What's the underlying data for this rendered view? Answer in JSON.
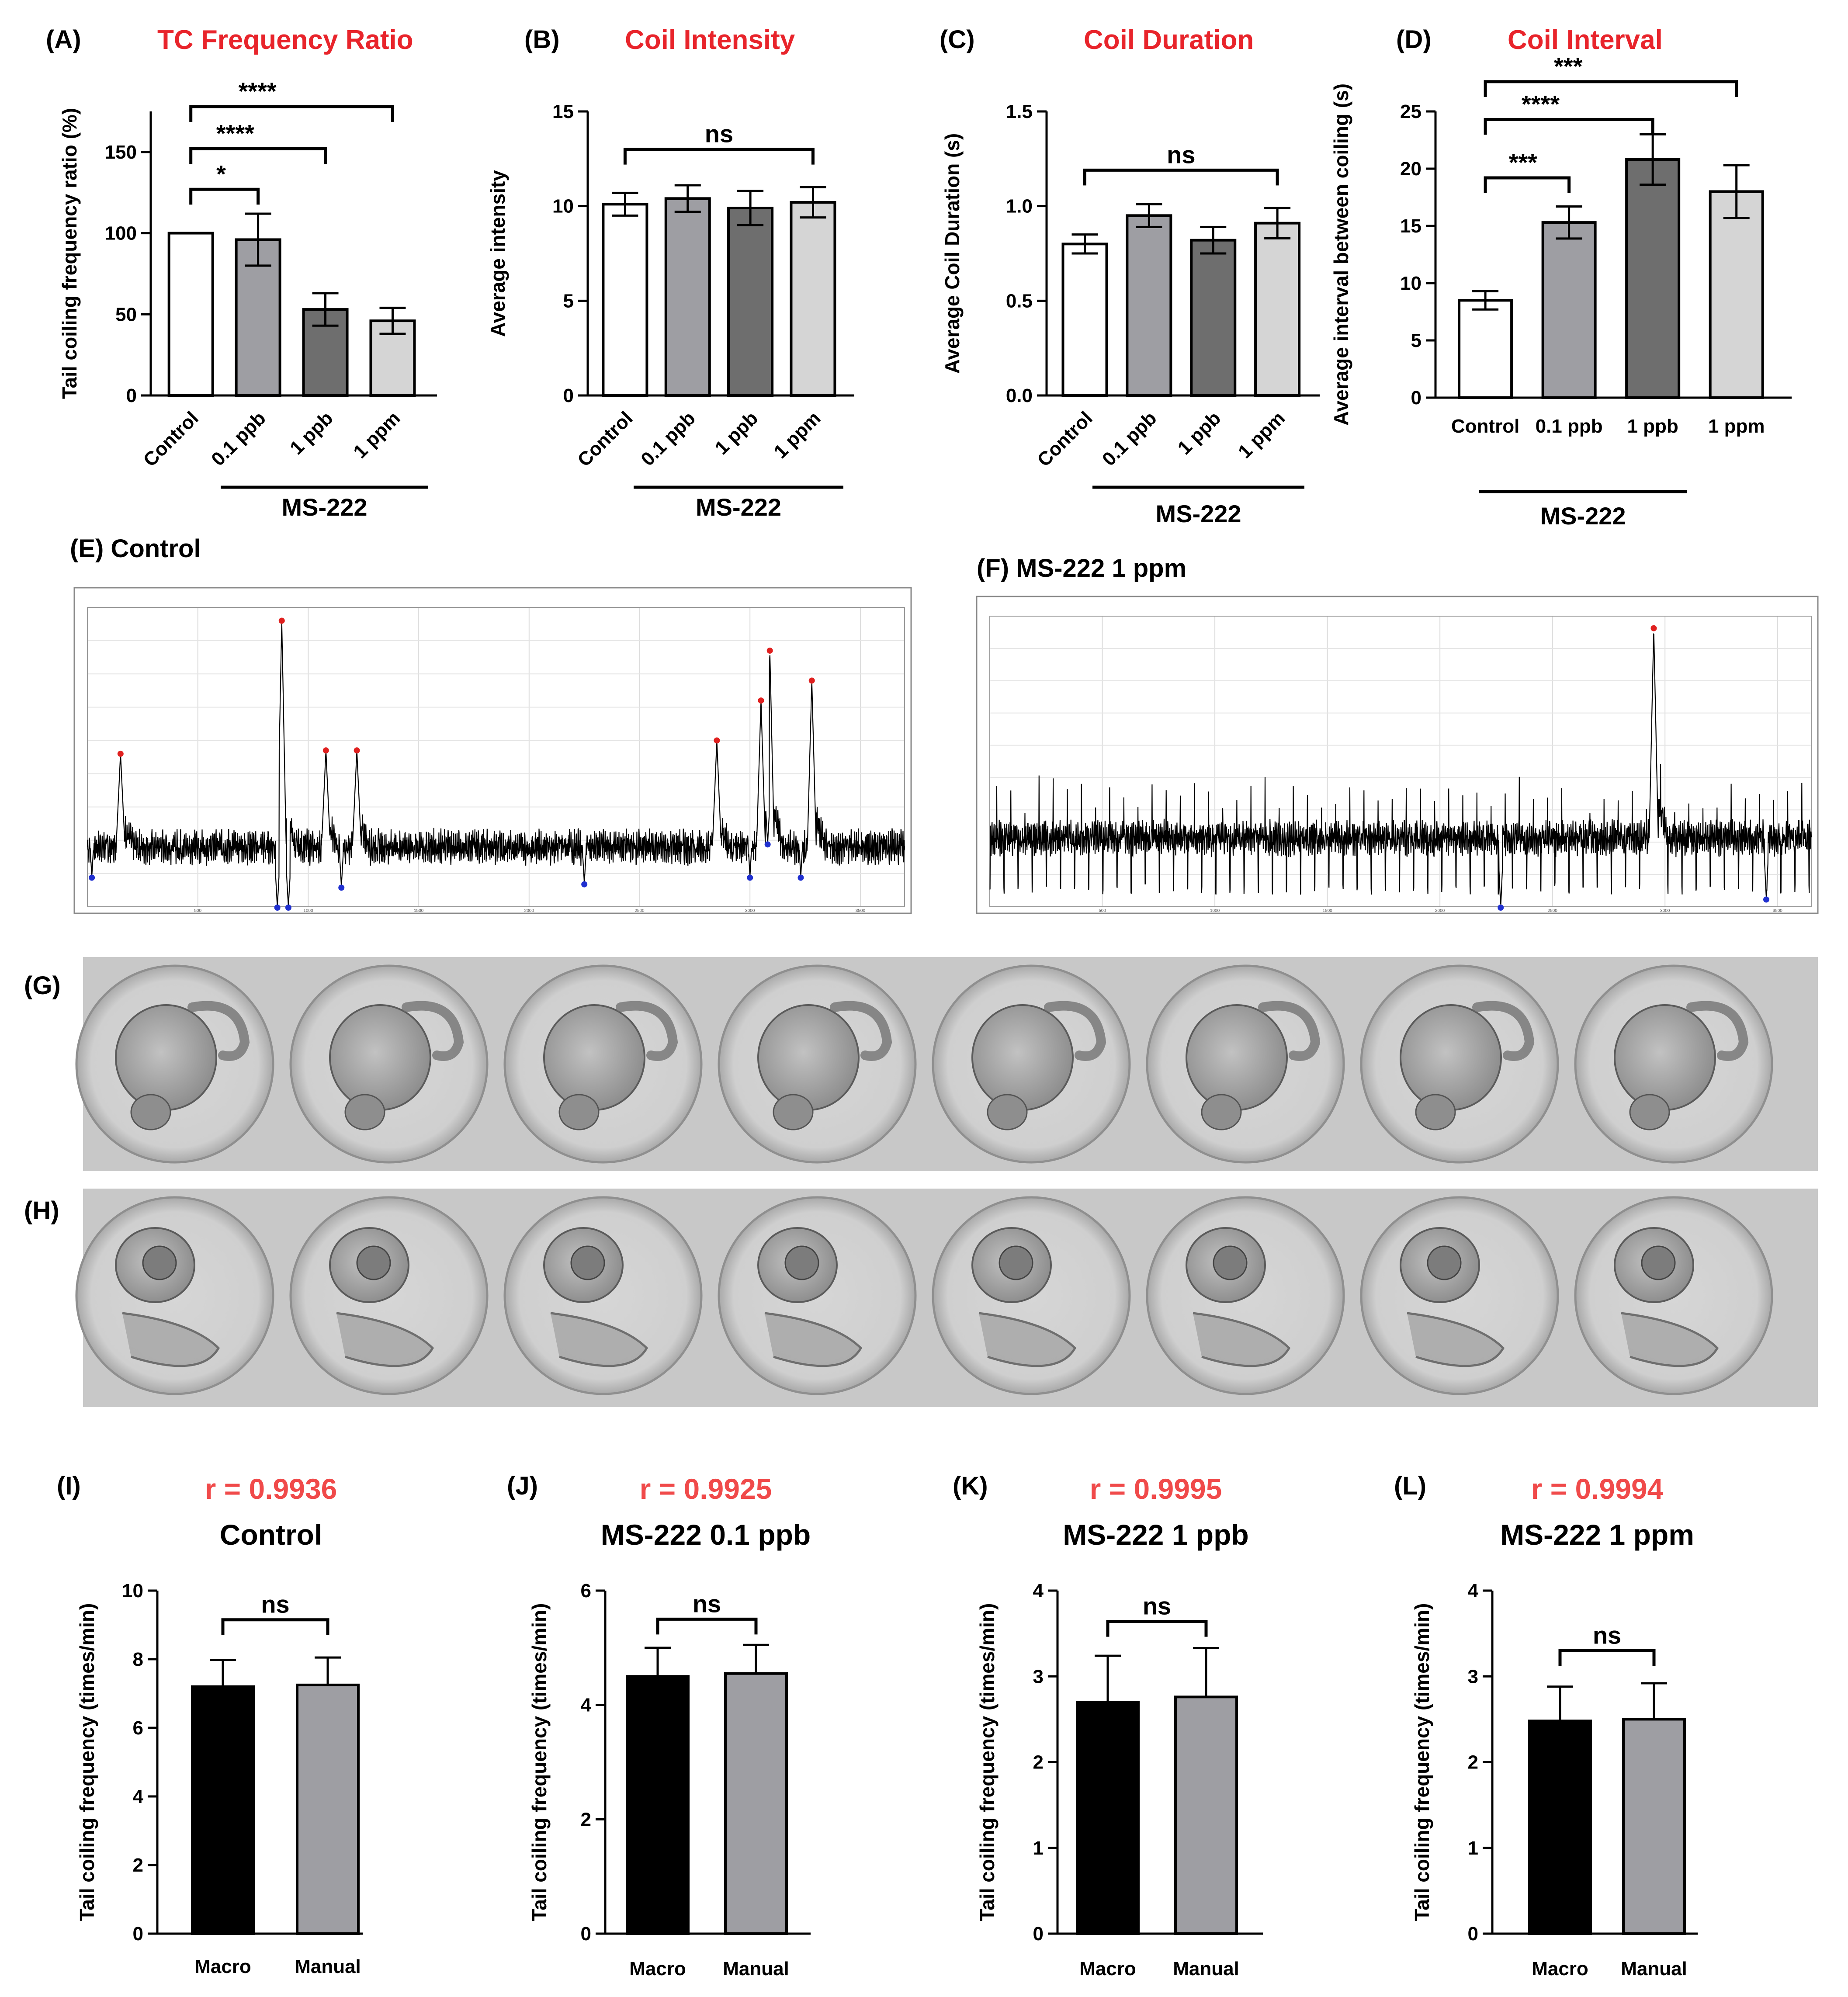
{
  "panels": {
    "A": {
      "letter": "(A)",
      "title": "TC Frequency Ratio"
    },
    "B": {
      "letter": "(B)",
      "title": "Coil Intensity"
    },
    "C": {
      "letter": "(C)",
      "title": "Coil Duration"
    },
    "D": {
      "letter": "(D)",
      "title": "Coil Interval"
    },
    "E": {
      "label": "(E) Control"
    },
    "F": {
      "label": "(F) MS-222 1 ppm"
    },
    "G": {
      "letter": "(G)"
    },
    "H": {
      "letter": "(H)"
    },
    "I": {
      "letter": "(I)",
      "r": "r = 0.9936",
      "subtitle": "Control"
    },
    "J": {
      "letter": "(J)",
      "r": "r = 0.9925",
      "subtitle": "MS-222 0.1 ppb"
    },
    "K": {
      "letter": "(K)",
      "r": "r = 0.9995",
      "subtitle": "MS-222 1 ppb"
    },
    "L": {
      "letter": "(L)",
      "r": "r = 0.9994",
      "subtitle": "MS-222 1 ppm"
    }
  },
  "colors": {
    "title_red": "#e8242b",
    "r_red": "#f04a4a",
    "white": "#ffffff",
    "light_gray": "#d5d5d5",
    "mid_gray": "#9e9ea3",
    "dark_gray": "#6e6e6e",
    "black": "#000000"
  },
  "chart_data": [
    {
      "id": "A",
      "type": "bar",
      "title": "TC Frequency Ratio",
      "ylabel": "Tail coiling frequency ratio (%)",
      "ylim": [
        0,
        180
      ],
      "yticks": [
        0,
        50,
        100,
        150
      ],
      "categories": [
        "Control",
        "0.1 ppb",
        "1 ppb",
        "1 ppm"
      ],
      "values": [
        100,
        96,
        53,
        46
      ],
      "errors": [
        0,
        16,
        10,
        8
      ],
      "fills": [
        "white",
        "mid_gray",
        "dark_gray",
        "light_gray"
      ],
      "group_label": "MS-222",
      "comparisons": [
        {
          "from": 0,
          "to": 1,
          "label": "*",
          "y": 127
        },
        {
          "from": 0,
          "to": 2,
          "label": "****",
          "y": 152
        },
        {
          "from": 0,
          "to": 3,
          "label": "****",
          "y": 178
        }
      ]
    },
    {
      "id": "B",
      "type": "bar",
      "title": "Coil Intensity",
      "ylabel": "Average intensity",
      "ylim": [
        0,
        15
      ],
      "yticks": [
        0,
        5,
        10,
        15
      ],
      "categories": [
        "Control",
        "0.1 ppb",
        "1 ppb",
        "1 ppm"
      ],
      "values": [
        10.1,
        10.4,
        9.9,
        10.2
      ],
      "errors": [
        0.6,
        0.7,
        0.9,
        0.8
      ],
      "fills": [
        "white",
        "mid_gray",
        "dark_gray",
        "light_gray"
      ],
      "group_label": "MS-222",
      "comparisons": [
        {
          "from": 0,
          "to": 3,
          "label": "ns",
          "y": 13.0
        }
      ]
    },
    {
      "id": "C",
      "type": "bar",
      "title": "Coil Duration",
      "ylabel": "Average Coil Duration (s)",
      "ylim": [
        0,
        1.5
      ],
      "yticks": [
        "0.0",
        "0.5",
        "1.0",
        "1.5"
      ],
      "categories": [
        "Control",
        "0.1 ppb",
        "1 ppb",
        "1 ppm"
      ],
      "values": [
        0.8,
        0.95,
        0.82,
        0.91
      ],
      "errors": [
        0.05,
        0.06,
        0.07,
        0.08
      ],
      "fills": [
        "white",
        "mid_gray",
        "dark_gray",
        "light_gray"
      ],
      "group_label": "MS-222",
      "comparisons": [
        {
          "from": 0,
          "to": 3,
          "label": "ns",
          "y": 1.19
        }
      ]
    },
    {
      "id": "D",
      "type": "bar",
      "title": "Coil Interval",
      "ylabel": "Average interval between coiling (s)",
      "ylim": [
        0,
        25
      ],
      "yticks": [
        0,
        5,
        10,
        15,
        20,
        25
      ],
      "categories": [
        "Control",
        "0.1 ppb",
        "1 ppb",
        "1 ppm"
      ],
      "values": [
        8.5,
        15.3,
        20.8,
        18.0
      ],
      "errors": [
        0.8,
        1.4,
        2.2,
        2.3
      ],
      "fills": [
        "white",
        "mid_gray",
        "dark_gray",
        "light_gray"
      ],
      "group_label": "MS-222",
      "comparisons": [
        {
          "from": 0,
          "to": 1,
          "label": "***",
          "y": 19.2
        },
        {
          "from": 0,
          "to": 2,
          "label": "****",
          "y": 24.3
        },
        {
          "from": 0,
          "to": 3,
          "label": "***",
          "y": 27.6
        }
      ]
    },
    {
      "id": "I",
      "type": "bar",
      "title": "Control",
      "r": "r = 0.9936",
      "ylabel": "Tail coiling frequency (times/min)",
      "ylim": [
        0,
        10
      ],
      "yticks": [
        0,
        2,
        4,
        6,
        8,
        10
      ],
      "categories": [
        "Macro",
        "Manual"
      ],
      "values": [
        7.2,
        7.25
      ],
      "errors": [
        0.78,
        0.8
      ],
      "fills": [
        "black",
        "mid_gray"
      ],
      "comparisons": [
        {
          "from": 0,
          "to": 1,
          "label": "ns",
          "y": 9.15
        }
      ]
    },
    {
      "id": "J",
      "type": "bar",
      "title": "MS-222 0.1 ppb",
      "r": "r = 0.9925",
      "ylabel": "Tail coiling frequency (times/min)",
      "ylim": [
        0,
        6
      ],
      "yticks": [
        0,
        2,
        4,
        6
      ],
      "categories": [
        "Macro",
        "Manual"
      ],
      "values": [
        4.5,
        4.55
      ],
      "errors": [
        0.5,
        0.5
      ],
      "fills": [
        "black",
        "mid_gray"
      ],
      "comparisons": [
        {
          "from": 0,
          "to": 1,
          "label": "ns",
          "y": 5.5
        }
      ]
    },
    {
      "id": "K",
      "type": "bar",
      "title": "MS-222 1 ppb",
      "r": "r = 0.9995",
      "ylabel": "Tail coiling frequency (times/min)",
      "ylim": [
        0,
        4
      ],
      "yticks": [
        0,
        1,
        2,
        3,
        4
      ],
      "categories": [
        "Macro",
        "Manual"
      ],
      "values": [
        2.7,
        2.76
      ],
      "errors": [
        0.54,
        0.57
      ],
      "fills": [
        "black",
        "mid_gray"
      ],
      "comparisons": [
        {
          "from": 0,
          "to": 1,
          "label": "ns",
          "y": 3.64
        }
      ]
    },
    {
      "id": "L",
      "type": "bar",
      "title": "MS-222 1 ppm",
      "r": "r = 0.9994",
      "ylabel": "Tail coiling frequency (times/min)",
      "ylim": [
        0,
        4
      ],
      "yticks": [
        0,
        1,
        2,
        3,
        4
      ],
      "categories": [
        "Macro",
        "Manual"
      ],
      "values": [
        2.48,
        2.5
      ],
      "errors": [
        0.4,
        0.42
      ],
      "fills": [
        "black",
        "mid_gray"
      ],
      "comparisons": [
        {
          "from": 0,
          "to": 1,
          "label": "ns",
          "y": 3.3
        }
      ]
    },
    {
      "id": "E",
      "type": "line",
      "title": "(E) Control",
      "xlim": [
        0,
        3700
      ],
      "xticks": [
        500,
        1000,
        1500,
        2000,
        2500,
        3000,
        3500
      ],
      "ylim": [
        0,
        4.5
      ],
      "baseline": 0.9,
      "noise_amp": 0.18,
      "peaks": [
        {
          "x": 150,
          "y": 2.3
        },
        {
          "x": 880,
          "y": 4.3
        },
        {
          "x": 1080,
          "y": 2.35
        },
        {
          "x": 1220,
          "y": 2.35
        },
        {
          "x": 2850,
          "y": 2.5
        },
        {
          "x": 3050,
          "y": 3.1
        },
        {
          "x": 3090,
          "y": 3.85
        },
        {
          "x": 3280,
          "y": 3.4
        }
      ],
      "troughs": [
        {
          "x": 20,
          "y": 0.45
        },
        {
          "x": 860,
          "y": 0.0
        },
        {
          "x": 910,
          "y": 0.0
        },
        {
          "x": 1150,
          "y": 0.3
        },
        {
          "x": 2250,
          "y": 0.35
        },
        {
          "x": 3000,
          "y": 0.45
        },
        {
          "x": 3080,
          "y": 0.95
        },
        {
          "x": 3230,
          "y": 0.45
        }
      ]
    },
    {
      "id": "F",
      "type": "line",
      "title": "(F) MS-222 1 ppm",
      "xlim": [
        0,
        3650
      ],
      "xticks": [
        500,
        1000,
        1500,
        2000,
        2500,
        3000,
        3500
      ],
      "ylim": [
        0,
        3.6
      ],
      "baseline": 0.85,
      "noise_amp": 0.15,
      "dips_period": 55,
      "peaks": [
        {
          "x": 2950,
          "y": 3.45
        }
      ],
      "troughs": [
        {
          "x": 2270,
          "y": 0.0
        },
        {
          "x": 3450,
          "y": 0.1
        }
      ]
    }
  ]
}
